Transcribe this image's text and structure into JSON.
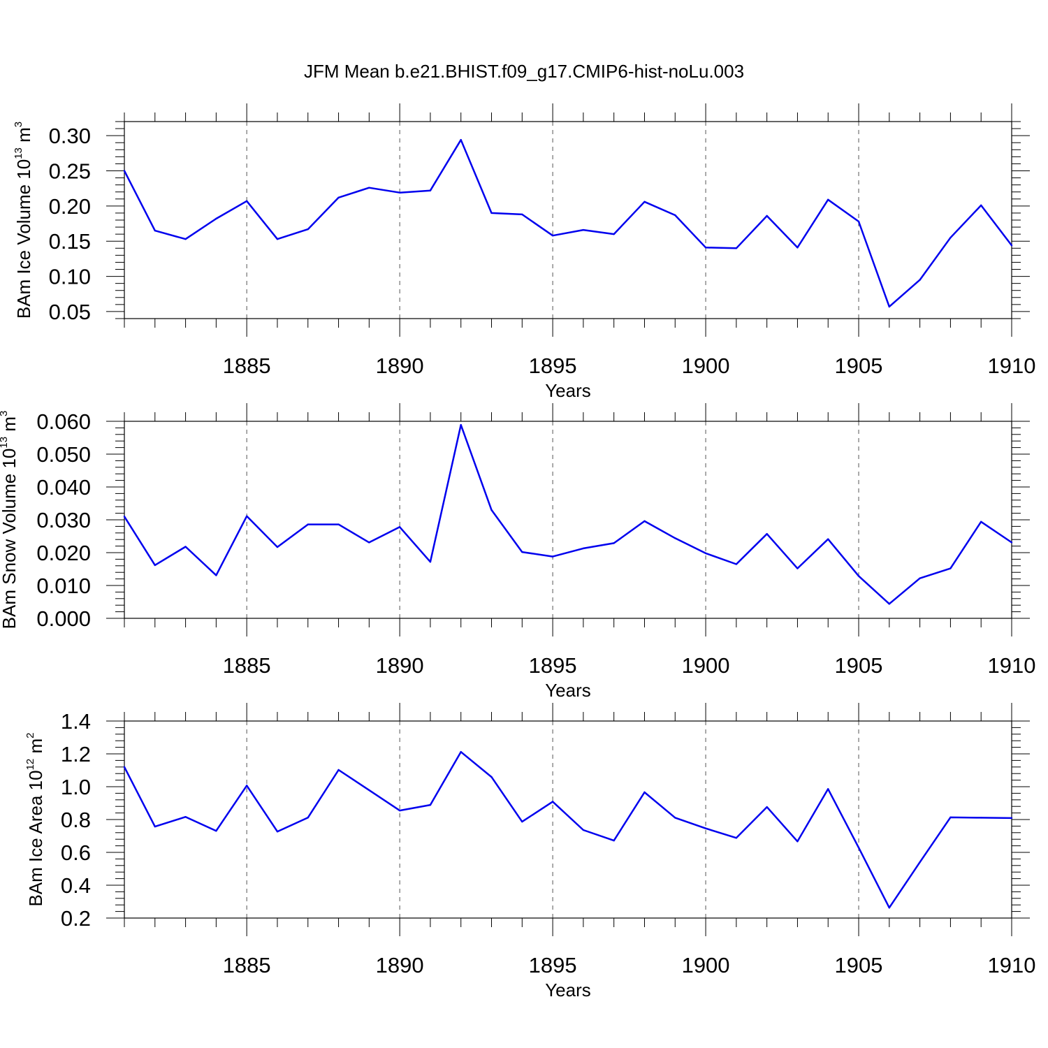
{
  "figure": {
    "title": "JFM Mean b.e21.BHIST.f09_g17.CMIP6-hist-noLu.003"
  },
  "chart_data": [
    {
      "type": "line",
      "xlabel": "Years",
      "ylabel": {
        "text": "BAm Ice Volume 10",
        "sup_exp": "13",
        "unit": " m",
        "sup_unit": "3"
      },
      "xlim": [
        1881,
        1910
      ],
      "ylim": [
        0.04,
        0.32
      ],
      "xticks": [
        "1885",
        "1890",
        "1895",
        "1900",
        "1905",
        "1910"
      ],
      "yticks": [
        "0.05",
        "0.10",
        "0.15",
        "0.20",
        "0.25",
        "0.30"
      ],
      "grid": "vertical dashed at major x ticks",
      "color": "#0000ee",
      "x": [
        1881,
        1882,
        1883,
        1884,
        1885,
        1886,
        1887,
        1888,
        1889,
        1890,
        1891,
        1892,
        1893,
        1894,
        1895,
        1896,
        1897,
        1898,
        1899,
        1900,
        1901,
        1902,
        1903,
        1904,
        1905,
        1906,
        1907,
        1908,
        1909,
        1910
      ],
      "values": [
        0.25,
        0.165,
        0.153,
        0.182,
        0.207,
        0.153,
        0.167,
        0.212,
        0.226,
        0.219,
        0.222,
        0.294,
        0.19,
        0.188,
        0.158,
        0.166,
        0.16,
        0.206,
        0.187,
        0.141,
        0.14,
        0.186,
        0.141,
        0.209,
        0.178,
        0.057,
        0.095,
        0.155,
        0.201,
        0.144
      ]
    },
    {
      "type": "line",
      "xlabel": "Years",
      "ylabel": {
        "text": "BAm Snow Volume 10",
        "sup_exp": "13",
        "unit": " m",
        "sup_unit": "3"
      },
      "xlim": [
        1881,
        1910
      ],
      "ylim": [
        0.0,
        0.06
      ],
      "xticks": [
        "1885",
        "1890",
        "1895",
        "1900",
        "1905",
        "1910"
      ],
      "yticks": [
        "0.000",
        "0.010",
        "0.020",
        "0.030",
        "0.040",
        "0.050",
        "0.060"
      ],
      "grid": "vertical dashed at major x ticks",
      "color": "#0000ee",
      "x": [
        1881,
        1882,
        1883,
        1884,
        1885,
        1886,
        1887,
        1888,
        1889,
        1890,
        1891,
        1892,
        1893,
        1894,
        1895,
        1896,
        1897,
        1898,
        1899,
        1900,
        1901,
        1902,
        1903,
        1904,
        1905,
        1906,
        1907,
        1908,
        1909,
        1910
      ],
      "values": [
        0.031,
        0.0162,
        0.0218,
        0.0131,
        0.0311,
        0.0217,
        0.0286,
        0.0286,
        0.0231,
        0.0278,
        0.0172,
        0.0589,
        0.033,
        0.0202,
        0.0188,
        0.0213,
        0.0229,
        0.0296,
        0.0244,
        0.0198,
        0.0165,
        0.0257,
        0.0152,
        0.0241,
        0.0129,
        0.0044,
        0.0122,
        0.0152,
        0.0294,
        0.0231
      ]
    },
    {
      "type": "line",
      "xlabel": "Years",
      "ylabel": {
        "text": "BAm Ice Area 10",
        "sup_exp": "12",
        "unit": " m",
        "sup_unit": "2"
      },
      "xlim": [
        1881,
        1910
      ],
      "ylim": [
        0.2,
        1.4
      ],
      "xticks": [
        "1885",
        "1890",
        "1895",
        "1900",
        "1905",
        "1910"
      ],
      "yticks": [
        "0.2",
        "0.4",
        "0.6",
        "0.8",
        "1.0",
        "1.2",
        "1.4"
      ],
      "grid": "vertical dashed at major x ticks",
      "color": "#0000ee",
      "x": [
        1881,
        1882,
        1883,
        1884,
        1885,
        1886,
        1887,
        1888,
        1889,
        1890,
        1891,
        1892,
        1893,
        1894,
        1895,
        1896,
        1897,
        1898,
        1899,
        1900,
        1901,
        1902,
        1903,
        1904,
        1905,
        1906,
        1907,
        1908,
        1909,
        1910
      ],
      "values": [
        1.12,
        0.757,
        0.816,
        0.731,
        1.007,
        0.727,
        0.812,
        1.102,
        0.979,
        0.855,
        0.889,
        1.212,
        1.059,
        0.787,
        0.909,
        0.736,
        0.672,
        0.966,
        0.811,
        0.746,
        0.688,
        0.876,
        0.667,
        0.986,
        0.629,
        0.263,
        0.54,
        0.813,
        0.811,
        0.809
      ]
    }
  ]
}
